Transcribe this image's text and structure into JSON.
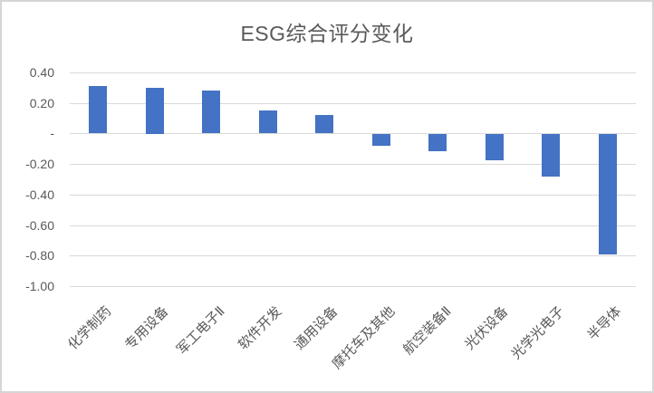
{
  "chart": {
    "title": "ESG综合评分变化",
    "colors": {
      "bar": "#4472C4",
      "gridline": "#D9D9D9",
      "text": "#595959",
      "frame_border": "#D6D6D6",
      "background": "#FFFFFF"
    }
  },
  "chart_data": {
    "type": "bar",
    "title": "ESG综合评分变化",
    "categories": [
      "化学制药",
      "专用设备",
      "军工电子Ⅱ",
      "软件开发",
      "通用设备",
      "摩托车及其他",
      "航空装备Ⅱ",
      "光伏设备",
      "光学光电子",
      "半导体"
    ],
    "values": [
      0.31,
      0.3,
      0.28,
      0.15,
      0.12,
      -0.08,
      -0.11,
      -0.17,
      -0.28,
      -0.79
    ],
    "xlabel": "",
    "ylabel": "",
    "ylim": [
      -1.0,
      0.4
    ],
    "yticks": {
      "values": [
        0.4,
        0.2,
        0,
        -0.2,
        -0.4,
        -0.6,
        -0.8,
        -1.0
      ],
      "labels": [
        "0.40",
        "0.20",
        "-",
        "-0.20",
        "-0.40",
        "-0.60",
        "-0.80",
        "-1.00"
      ]
    },
    "grid": "horizontal",
    "legend": "none",
    "bar_color": "#4472C4"
  }
}
